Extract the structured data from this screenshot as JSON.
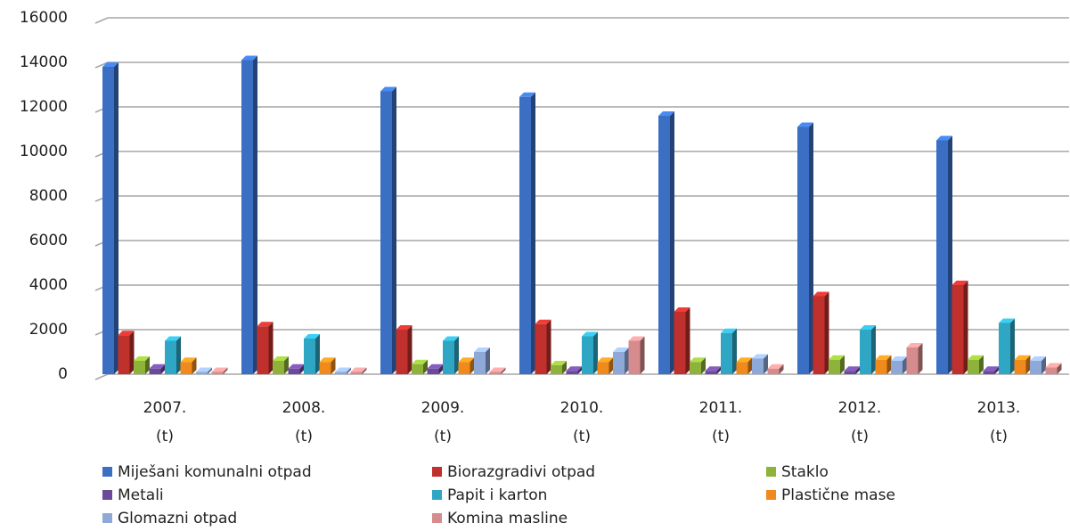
{
  "chart_data": {
    "type": "bar",
    "categories": [
      "2007.\n(t)",
      "2008.\n(t)",
      "2009.\n(t)",
      "2010.\n(t)",
      "2011.\n(t)",
      "2012.\n(t)",
      "2013.\n(t)"
    ],
    "series": [
      {
        "name": "Miješani komunalni otpad",
        "color": "#3a6fc4",
        "values": [
          13800,
          14100,
          12700,
          12450,
          11600,
          11100,
          10500
        ]
      },
      {
        "name": "Biorazgradivi otpad",
        "color": "#c0302c",
        "values": [
          1750,
          2150,
          2000,
          2250,
          2800,
          3500,
          4000
        ]
      },
      {
        "name": "Staklo",
        "color": "#8db33a",
        "values": [
          600,
          600,
          450,
          400,
          550,
          650,
          650
        ]
      },
      {
        "name": "Metali",
        "color": "#6c4a9a",
        "values": [
          250,
          250,
          250,
          150,
          150,
          150,
          150
        ]
      },
      {
        "name": "Papit i karton",
        "color": "#2ea6c4",
        "values": [
          1500,
          1600,
          1500,
          1700,
          1850,
          2000,
          2300
        ]
      },
      {
        "name": "Plastične mase",
        "color": "#f08a1c",
        "values": [
          550,
          550,
          550,
          550,
          550,
          650,
          650
        ]
      },
      {
        "name": "Glomazni otpad",
        "color": "#8ea9d8",
        "values": [
          100,
          100,
          1000,
          1000,
          700,
          600,
          600
        ]
      },
      {
        "name": "Komina masline",
        "color": "#d68c8c",
        "values": [
          100,
          100,
          100,
          1500,
          250,
          1200,
          300
        ]
      }
    ],
    "ylim": [
      0,
      16000
    ],
    "yticks": [
      0,
      2000,
      4000,
      6000,
      8000,
      10000,
      12000,
      14000,
      16000
    ],
    "grid": true
  }
}
